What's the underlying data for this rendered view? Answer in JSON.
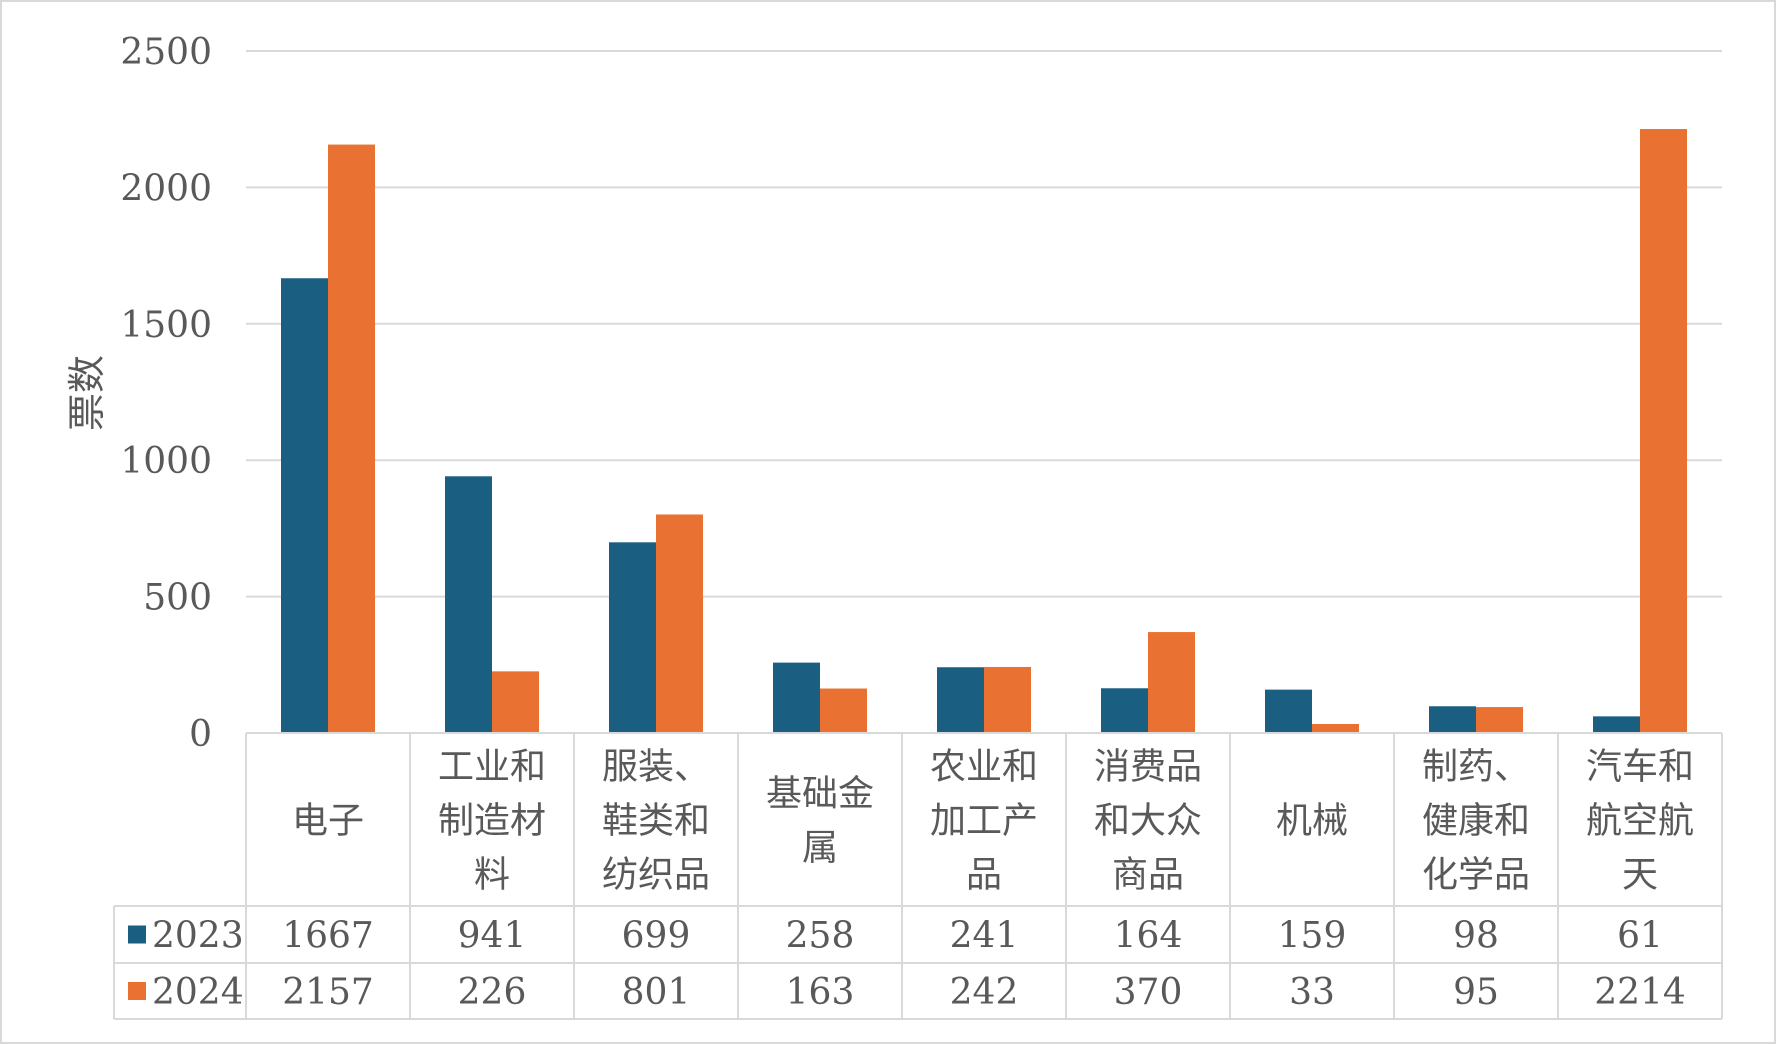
{
  "chart_data": {
    "type": "bar",
    "ylabel": "票数",
    "ylim": [
      0,
      2500
    ],
    "yticks": [
      "0",
      "500",
      "1000",
      "1500",
      "2000",
      "2500"
    ],
    "grid": true,
    "legend": "data-table",
    "categories": [
      "电子",
      "工业和制造材料",
      "服装、鞋类和纺织品",
      "基础金属",
      "农业和加工产品",
      "消费品和大众商品",
      "机械",
      "制药、健康和化学品",
      "汽车和航空航天"
    ],
    "category_lines": [
      [
        "电子"
      ],
      [
        "工业和",
        "制造材",
        "料"
      ],
      [
        "服装、",
        "鞋类和",
        "纺织品"
      ],
      [
        "基础金",
        "属"
      ],
      [
        "农业和",
        "加工产",
        "品"
      ],
      [
        "消费品",
        "和大众",
        "商品"
      ],
      [
        "机械"
      ],
      [
        "制药、",
        "健康和",
        "化学品"
      ],
      [
        "汽车和",
        "航空航",
        "天"
      ]
    ],
    "series": [
      {
        "name": "2023",
        "color": "#1a5e82",
        "values": [
          1667,
          941,
          699,
          258,
          241,
          164,
          159,
          98,
          61
        ]
      },
      {
        "name": "2024",
        "color": "#e97132",
        "values": [
          2157,
          226,
          801,
          163,
          242,
          370,
          33,
          95,
          2214
        ]
      }
    ]
  }
}
